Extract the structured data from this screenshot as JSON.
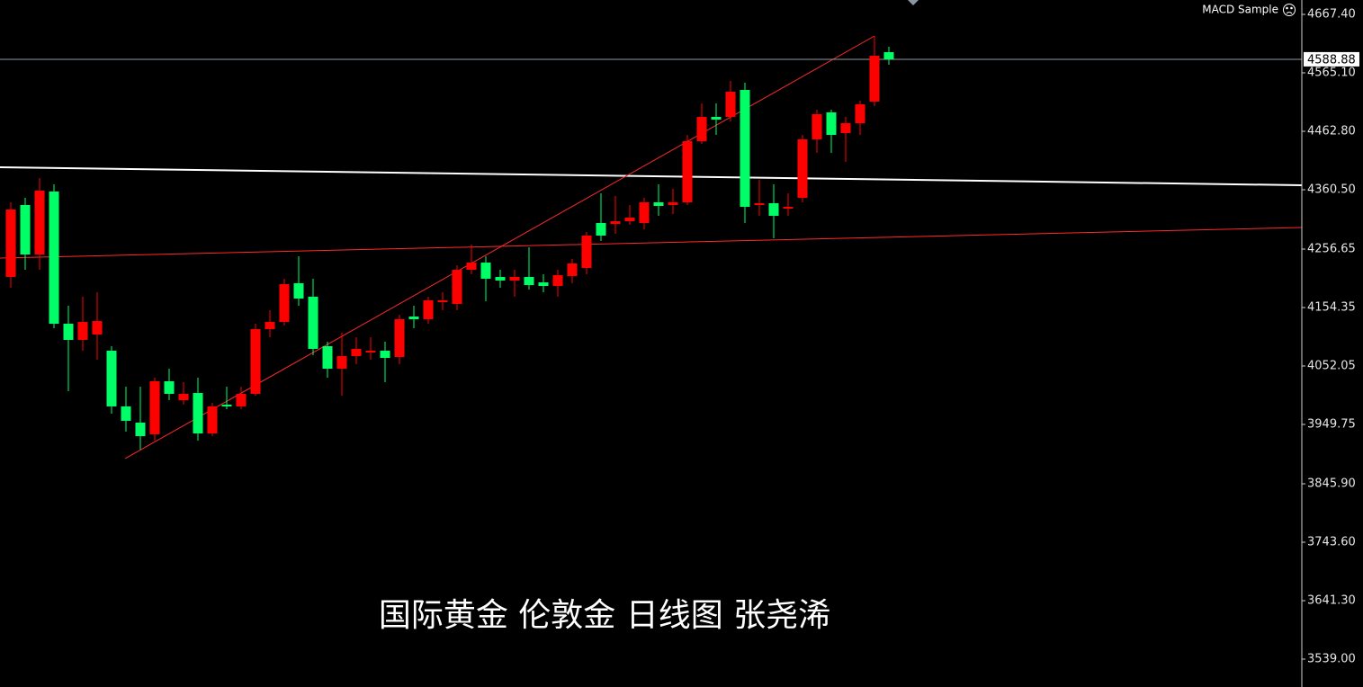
{
  "chart_data": {
    "type": "candlestick",
    "indicator": "MACD Sample",
    "caption": "国际黄金 伦敦金 日线图 张尧浠",
    "last_price": 4588.88,
    "up_color": "#ff0000",
    "down_color": "#00ff66",
    "ylim": [
      3490.2,
      4692.6
    ],
    "yticks": [
      {
        "value": 4667.4,
        "label": "4667.40"
      },
      {
        "value": 4565.1,
        "label": "4565.10"
      },
      {
        "value": 4462.8,
        "label": "4462.80"
      },
      {
        "value": 4360.5,
        "label": "4360.50"
      },
      4256.65,
      4154.35,
      4052.05,
      3949.75,
      {
        "value": 3845.9,
        "label": "3845.90"
      },
      {
        "value": 3743.6,
        "label": "3743.60"
      },
      {
        "value": 3641.3,
        "label": "3641.30"
      },
      {
        "value": 3539,
        "label": "3539.00"
      }
    ],
    "open": [
      4207.9,
      4333.8,
      4247.2,
      4357.4,
      4126.0,
      4097.7,
      4107.1,
      4078.8,
      3981.3,
      3952.9,
      3932.5,
      4025.3,
      3992.2,
      4004.8,
      3934.0,
      3984.4,
      3981.3,
      4003.3,
      4116.6,
      4129.2,
      4196.9,
      4173.3,
      4086.7,
      4047.3,
      4069.4,
      4075.7,
      4078.8,
      4067.8,
      4138.6,
      4133.9,
      4163.8,
      4160.7,
      4220.5,
      4233.0,
      4207.9,
      4201.6,
      4207.9,
      4198.4,
      4192.1,
      4209.5,
      4223.6,
      4302.3,
      4300.7,
      4305.4,
      4302.3,
      4338.5,
      4333.8,
      4338.5,
      4445.5,
      4488.0,
      4488.0,
      4535.2,
      4333.8,
      4336.9,
      4327.5,
      4346.4,
      4448.7,
      4495.9,
      4459.7,
      4477.0,
      4514.8,
      4601.3
    ],
    "high": [
      4338.5,
      4346.4,
      4381.0,
      4370.0,
      4157.5,
      4173.3,
      4181.1,
      4086.7,
      4015.9,
      4015.9,
      4031.6,
      4047.3,
      4023.7,
      4031.6,
      3987.6,
      4015.9,
      4015.9,
      4126.0,
      4149.6,
      4204.8,
      4244.1,
      4204.8,
      4094.6,
      4110.3,
      4102.4,
      4102.4,
      4094.6,
      4141.7,
      4157.5,
      4173.3,
      4181.1,
      4228.3,
      4264.5,
      4244.1,
      4220.5,
      4220.5,
      4259.8,
      4212.6,
      4220.5,
      4239.3,
      4286.6,
      4354.2,
      4349.5,
      4333.8,
      4346.4,
      4370.0,
      4362.1,
      4456.5,
      4511.6,
      4511.6,
      4550.9,
      4547.8,
      4377.8,
      4370.0,
      4354.2,
      4456.5,
      4500.6,
      4500.6,
      4488.0,
      4516.3,
      4629.6,
      4610.8
    ],
    "low": [
      4189.0,
      4220.5,
      4220.5,
      4118.1,
      4008.0,
      4078.8,
      4063.1,
      3968.6,
      3937.2,
      3905.7,
      3921.4,
      3992.2,
      3984.4,
      3921.4,
      3929.3,
      3976.5,
      3976.5,
      4000.1,
      4102.4,
      4122.9,
      4157.5,
      4071.0,
      4031.6,
      4000.1,
      4055.2,
      4063.1,
      4023.7,
      4055.2,
      4118.1,
      4126.0,
      4149.6,
      4149.6,
      4212.6,
      4165.4,
      4189.0,
      4173.3,
      4185.8,
      4181.1,
      4173.3,
      4196.9,
      4212.6,
      4270.8,
      4283.4,
      4299.2,
      4291.3,
      4314.9,
      4318.0,
      4333.8,
      4440.8,
      4456.5,
      4480.1,
      4302.3,
      4314.9,
      4275.5,
      4314.9,
      4338.5,
      4425.0,
      4425.0,
      4409.3,
      4456.5,
      4506.9,
      4579.3
    ],
    "close": [
      4325.9,
      4247.2,
      4359.0,
      4126.0,
      4097.7,
      4129.2,
      4130.7,
      3981.3,
      3956.1,
      3929.3,
      4025.3,
      4003.3,
      4003.3,
      3934.0,
      3981.3,
      3981.3,
      4003.3,
      4116.6,
      4129.2,
      4195.3,
      4170.1,
      4082.0,
      4047.3,
      4069.4,
      4082.0,
      4078.8,
      4066.2,
      4133.9,
      4133.9,
      4167.0,
      4167.0,
      4220.5,
      4233.0,
      4204.8,
      4201.6,
      4207.9,
      4193.7,
      4192.1,
      4211.0,
      4231.5,
      4280.3,
      4280.3,
      4305.4,
      4311.7,
      4338.5,
      4332.2,
      4338.5,
      4445.5,
      4488.0,
      4483.3,
      4532.1,
      4330.6,
      4336.9,
      4314.9,
      4330.6,
      4448.7,
      4492.7,
      4456.5,
      4477.0,
      4510.0,
      4595.0,
      4588.88
    ]
  }
}
